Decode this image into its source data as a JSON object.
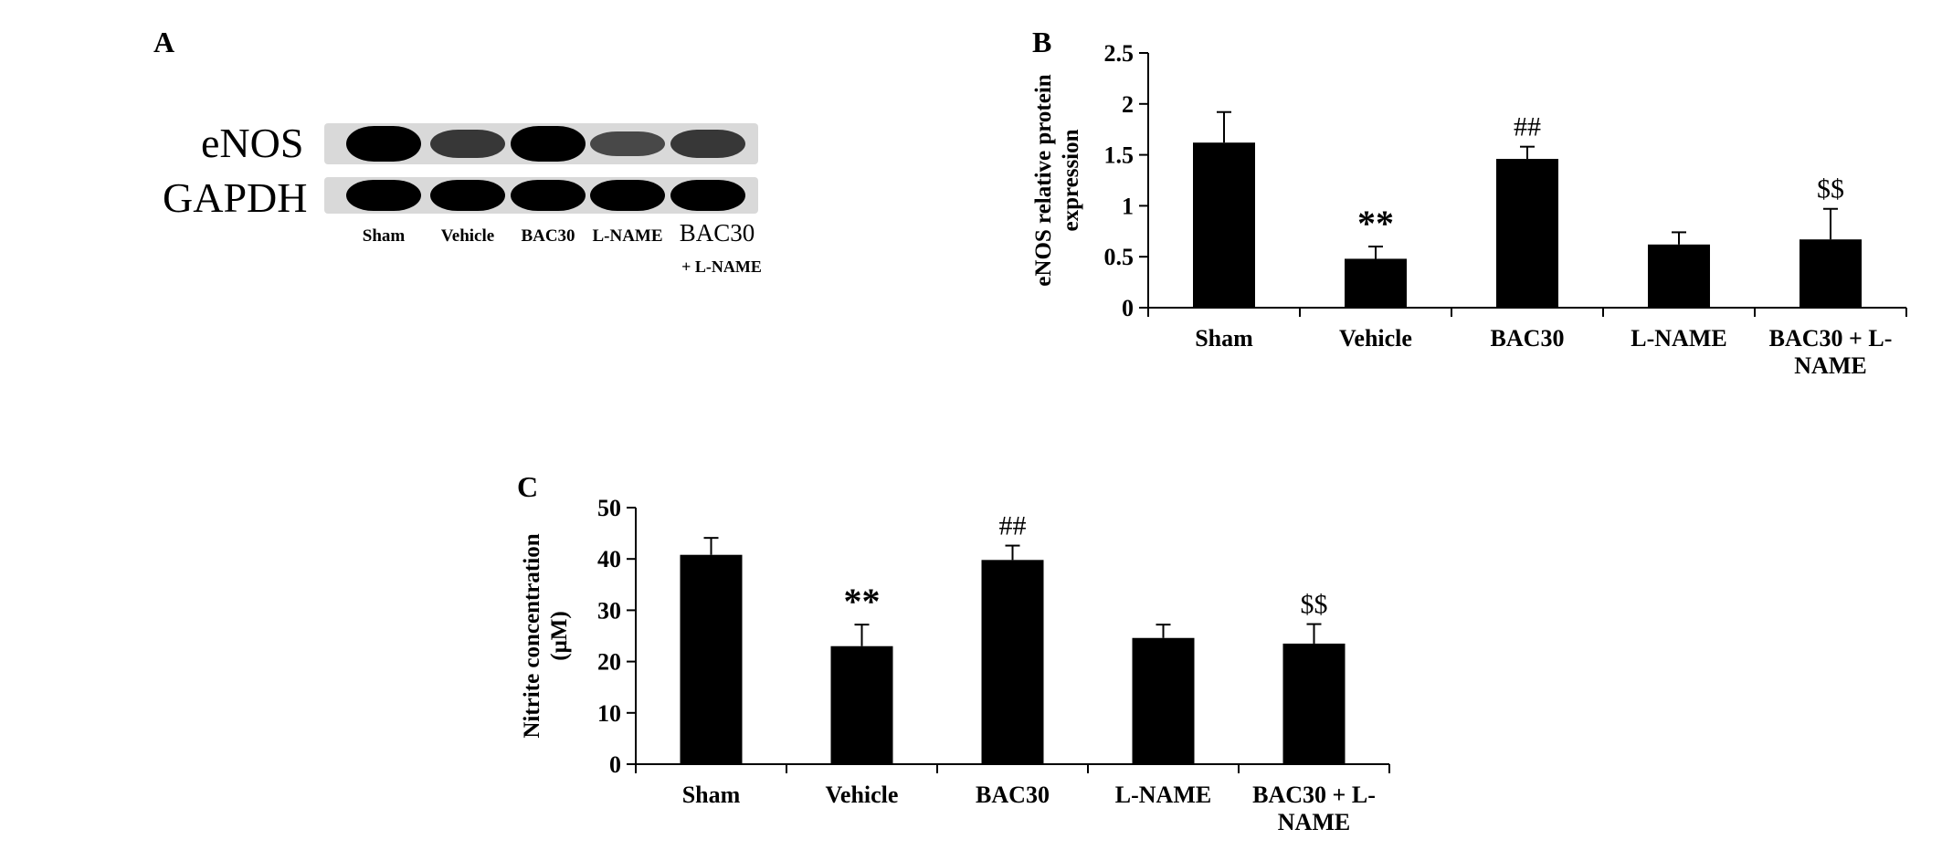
{
  "panels": {
    "a": "A",
    "b": "B",
    "c": "C"
  },
  "blot": {
    "rows": [
      {
        "label": "eNOS",
        "intensity": [
          1.0,
          0.55,
          1.0,
          0.4,
          0.55
        ]
      },
      {
        "label": "GAPDH",
        "intensity": [
          1.0,
          1.0,
          1.0,
          1.0,
          1.0
        ]
      }
    ],
    "lanes": [
      "Sham",
      "Vehicle",
      "BAC30",
      "L-NAME",
      "BAC30"
    ],
    "lane5_sub": "+ L-NAME"
  },
  "chart_data": [
    {
      "type": "bar",
      "panel": "B",
      "categories": [
        "Sham",
        "Vehicle",
        "BAC30",
        "L-NAME",
        "BAC30 + L-NAME"
      ],
      "category_lines": [
        [
          "Sham"
        ],
        [
          "Vehicle"
        ],
        [
          "BAC30"
        ],
        [
          "L-NAME"
        ],
        [
          "BAC30 + L-",
          "NAME"
        ]
      ],
      "values": [
        1.62,
        0.48,
        1.46,
        0.62,
        0.67
      ],
      "errors": [
        0.3,
        0.12,
        0.12,
        0.12,
        0.3
      ],
      "annotations": [
        "",
        "**",
        "##",
        "",
        "$$"
      ],
      "ylabel_lines": [
        "eNOS relative protein",
        "expression"
      ],
      "ylim": [
        0,
        2.5
      ],
      "yticks": [
        0,
        0.5,
        1,
        1.5,
        2,
        2.5
      ],
      "ytick_labels": [
        "0",
        "0.5",
        "1",
        "1.5",
        "2",
        "2.5"
      ],
      "grid": false
    },
    {
      "type": "bar",
      "panel": "C",
      "categories": [
        "Sham",
        "Vehicle",
        "BAC30",
        "L-NAME",
        "BAC30 + L-NAME"
      ],
      "category_lines": [
        [
          "Sham"
        ],
        [
          "Vehicle"
        ],
        [
          "BAC30"
        ],
        [
          "L-NAME"
        ],
        [
          "BAC30 + L-",
          "NAME"
        ]
      ],
      "values": [
        40.8,
        23.0,
        39.8,
        24.6,
        23.5
      ],
      "errors": [
        3.3,
        4.2,
        2.8,
        2.6,
        3.8
      ],
      "annotations": [
        "",
        "**",
        "##",
        "",
        "$$"
      ],
      "ylabel_lines": [
        "Nitrite concentration",
        "(μM)"
      ],
      "ylim": [
        0,
        50
      ],
      "yticks": [
        0,
        10,
        20,
        30,
        40,
        50
      ],
      "ytick_labels": [
        "0",
        "10",
        "20",
        "30",
        "40",
        "50"
      ],
      "grid": false
    }
  ]
}
